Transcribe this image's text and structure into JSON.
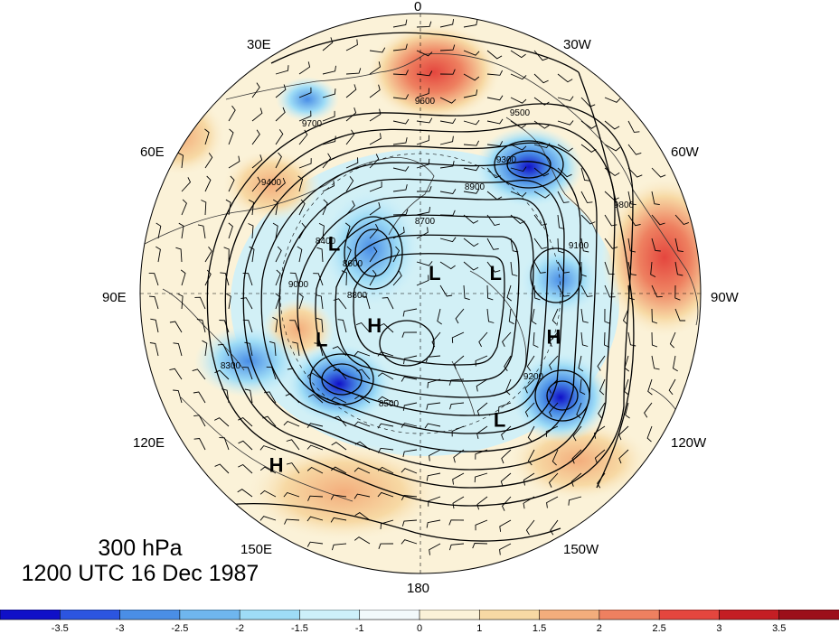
{
  "map": {
    "level": "300 hPa",
    "valid_time": "1200 UTC 16 Dec 1987",
    "longitude_labels": [
      "0",
      "30W",
      "60W",
      "90W",
      "120W",
      "150W",
      "180",
      "150E",
      "120E",
      "90E",
      "60E",
      "30E"
    ],
    "centers": [
      {
        "label": "L",
        "lat": 58,
        "lon": 60
      },
      {
        "label": "L",
        "lat": 55,
        "lon": 115
      },
      {
        "label": "H",
        "lat": 72,
        "lon": 125
      },
      {
        "label": "L",
        "lat": 82,
        "lon": 325
      },
      {
        "label": "L",
        "lat": 65,
        "lon": 285
      },
      {
        "label": "L",
        "lat": 42,
        "lon": 212
      },
      {
        "label": "H",
        "lat": 45,
        "lon": 252
      },
      {
        "label": "H",
        "lat": 18,
        "lon": 140
      }
    ],
    "contour_labels": [
      "9600",
      "9500",
      "9300",
      "9400",
      "9700",
      "8900",
      "8700",
      "8500",
      "9200",
      "9100",
      "9000",
      "8800",
      "8600",
      "8400",
      "8300",
      "9800"
    ],
    "colors": {
      "continent_outline": "#333333",
      "contour": "#000000",
      "wind_barb": "#000000"
    }
  },
  "colorbar": {
    "tick_labels": [
      "-3.5",
      "-3",
      "-2.5",
      "-2",
      "-1.5",
      "-1",
      "0",
      "1",
      "1.5",
      "2",
      "2.5",
      "3",
      "3.5"
    ],
    "colors": [
      "#1010c8",
      "#2c55e0",
      "#4a8ee6",
      "#6fb6ee",
      "#9edcf6",
      "#cdf0fa",
      "#f2f9fb",
      "#fbf2d8",
      "#f7d9a4",
      "#f3ad7c",
      "#ee8060",
      "#e4463e",
      "#c41e24",
      "#9c0f1a"
    ]
  }
}
